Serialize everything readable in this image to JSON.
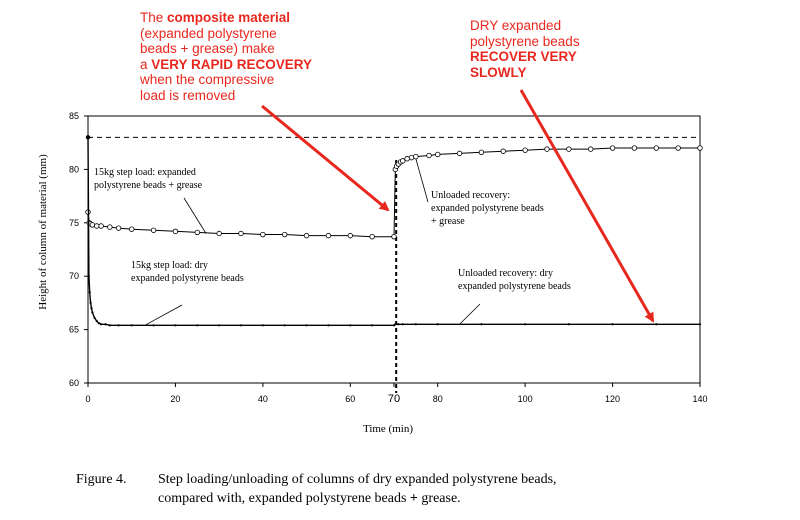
{
  "annotations": {
    "composite": {
      "line1_a": "The ",
      "line1_b": "composite material",
      "line2": "(expanded polystyrene",
      "line3": "beads + grease) make",
      "line4_a": "a ",
      "line4_b": "VERY RAPID RECOVERY",
      "line5": "when the compressive",
      "line6": "load is removed"
    },
    "dry": {
      "line1": "DRY expanded",
      "line2": "polystyrene beads",
      "line3": "RECOVER VERY",
      "line4": "SLOWLY"
    },
    "arrow_color": "#e8281e"
  },
  "caption": {
    "fig_no": "Figure 4.",
    "line1": "Step loading/unloading of columns of dry expanded polystyrene beads,",
    "line2_a": "compared  with, expanded polystyrene beads ",
    "line2_plus": "+",
    "line2_b": " grease."
  },
  "chart_data": {
    "type": "scatter",
    "xlabel": "Time (min)",
    "ylabel": "Height of column of material (mm)",
    "xlim": [
      0,
      140
    ],
    "ylim": [
      60,
      85
    ],
    "xticks": [
      0,
      20,
      40,
      60,
      70,
      80,
      100,
      120,
      140
    ],
    "yticks": [
      60,
      65,
      70,
      75,
      80,
      85
    ],
    "grid": false,
    "reference_line": {
      "y": 83,
      "style": "dashed"
    },
    "unload_line": {
      "x": 70.5,
      "style": "dashed"
    },
    "series": [
      {
        "marker": "circle",
        "x": [
          0,
          0.3,
          0.6,
          1,
          2,
          3,
          5,
          7,
          10,
          15,
          20,
          25,
          30,
          35,
          40,
          45,
          50,
          55,
          60,
          65,
          70,
          70.3,
          70.6,
          71,
          71.5,
          72,
          73,
          74,
          75,
          78,
          80,
          85,
          90,
          95,
          100,
          105,
          110,
          115,
          120,
          125,
          130,
          135,
          140
        ],
        "y": [
          76,
          75,
          74.9,
          74.8,
          74.7,
          74.7,
          74.6,
          74.5,
          74.4,
          74.3,
          74.2,
          74.1,
          74.0,
          74.0,
          73.9,
          73.9,
          73.8,
          73.8,
          73.8,
          73.7,
          73.7,
          80.0,
          80.3,
          80.5,
          80.7,
          80.8,
          81.0,
          81.1,
          81.2,
          81.3,
          81.4,
          81.5,
          81.6,
          81.7,
          81.8,
          81.9,
          81.9,
          81.9,
          82.0,
          82.0,
          82.0,
          82.0,
          82.0
        ]
      },
      {
        "marker": "small-dot",
        "x": [
          0,
          0.2,
          0.4,
          0.6,
          0.8,
          1,
          1.5,
          2,
          2.5,
          3,
          4,
          5,
          7,
          10,
          15,
          20,
          25,
          30,
          35,
          40,
          45,
          50,
          55,
          60,
          65,
          70,
          70.3,
          71,
          72,
          75,
          80,
          90,
          100,
          110,
          120,
          130,
          140
        ],
        "y": [
          83,
          70,
          68.5,
          67.5,
          67,
          66.6,
          66.1,
          65.8,
          65.6,
          65.5,
          65.5,
          65.4,
          65.4,
          65.4,
          65.4,
          65.4,
          65.4,
          65.4,
          65.4,
          65.4,
          65.4,
          65.4,
          65.4,
          65.4,
          65.4,
          65.4,
          65.5,
          65.5,
          65.5,
          65.5,
          65.5,
          65.5,
          65.5,
          65.5,
          65.5,
          65.5,
          65.5
        ]
      }
    ],
    "annotations": [
      {
        "lines": [
          "15kg step load: expanded",
          "polystyrene beads + grease"
        ],
        "pointer": [
          27,
          74.0
        ]
      },
      {
        "lines": [
          "Unloaded recovery:",
          "expanded polystyrene beads",
          "+ grease"
        ],
        "pointer": [
          75,
          81.0
        ]
      },
      {
        "lines": [
          "15kg step load: dry",
          "expanded polystyrene beads"
        ],
        "pointer": [
          13,
          65.4
        ]
      },
      {
        "lines": [
          "Unloaded recovery: dry",
          "expanded polystyrene beads"
        ],
        "pointer": [
          85,
          65.5
        ]
      }
    ]
  }
}
